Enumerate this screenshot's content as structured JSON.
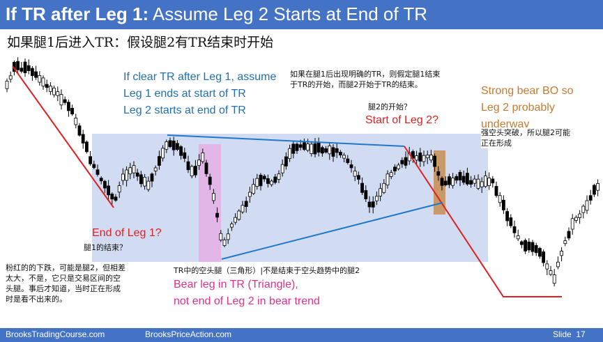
{
  "slide": {
    "title_bold": "If TR after Leg 1:",
    "title_rest": " Assume Leg 2 Starts at End of TR",
    "subtitle_cn": "如果腿1后进入TR：假设腿2有TR结束时开始"
  },
  "annotations": {
    "clear_tr": [
      "If clear TR after Leg 1, assume",
      "Leg 1 ends at start of TR",
      "Leg 2 starts at end of TR"
    ],
    "clear_tr_cn": [
      "如果在腿1后出现明确的TR，则假定腿1结束",
      "于TR的开始，而腿2开始于TR的结束。"
    ],
    "start_leg2_cn": "腿2的开始？",
    "start_leg2": "Start of Leg 2?",
    "strong_bear": [
      "Strong bear BO so",
      "Leg 2 probably",
      "underway"
    ],
    "strong_bear_cn": [
      "强空头突破，所以腿2可能",
      "正在形成"
    ],
    "end_leg1": "End of Leg 1?",
    "end_leg1_cn": "腿1的结束？",
    "pink_note_cn": [
      "粉红的的下跌，可能是腿2，但相差",
      "太大，不是，它只是交易区间的空",
      "头腿。事后才知道，当时正在形成",
      "时是看不出来的。"
    ],
    "bear_leg_cn": "TR中的空头腿（三角形）|不是结束于空头趋势中的腿2",
    "bear_leg": [
      "Bear leg in TR (Triangle),",
      "not end of Leg 2 in bear trend"
    ]
  },
  "footer": {
    "left": "BrooksTradingCourse.com",
    "center": "BrooksPriceAction.com",
    "slide_label": "Slide",
    "slide_number": "17"
  },
  "colors": {
    "title_bar": "#4472c4",
    "range_box": "#c9d6f0",
    "pink_highlight": "#e3b3e6",
    "orange_highlight": "#c8925a",
    "trend_line": "#e02020",
    "triangle_line": "#1f78c8",
    "bull_bar": "#ffffff",
    "bear_bar": "#000000"
  }
}
